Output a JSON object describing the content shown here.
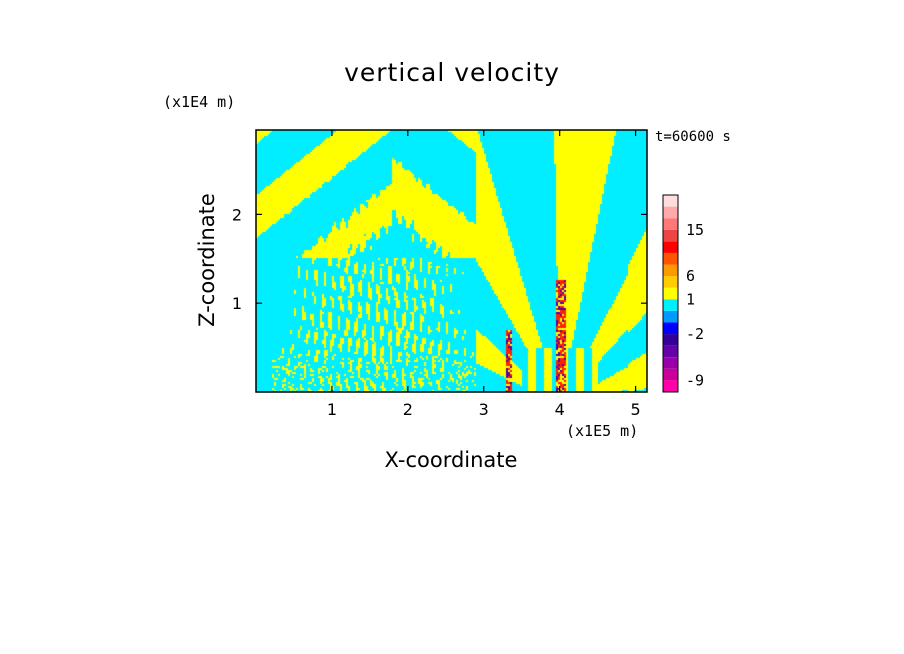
{
  "chart_data": {
    "type": "heatmap",
    "title": "vertical velocity",
    "xlabel": "X-coordinate",
    "ylabel": "Z-coordinate",
    "x_unit": "(x1E5 m)",
    "z_unit": "(x1E4 m)",
    "time_label": "t=60600 s",
    "xlim": [
      0,
      5.15
    ],
    "zlim": [
      0,
      2.95
    ],
    "x_ticks": [
      1,
      2,
      3,
      4,
      5
    ],
    "z_ticks": [
      1,
      2
    ],
    "colorbar": {
      "colors": [
        "#ff00aa",
        "#cc0099",
        "#9900aa",
        "#6600aa",
        "#330099",
        "#0000ff",
        "#0099ff",
        "#00eeff",
        "#ffff00",
        "#ffcc00",
        "#ff9900",
        "#ff5500",
        "#ff0000",
        "#ee4444",
        "#ff7777",
        "#ffaaaa",
        "#ffdddd"
      ],
      "tick_labels": [
        "-9",
        "-2",
        "1",
        "6",
        "15"
      ],
      "tick_levels": [
        1,
        5,
        8,
        10,
        14
      ]
    },
    "field_colors": {
      "positive": "#ffff00",
      "negative": "#00eeff",
      "strong_positive": "#ff2200",
      "strong_negative": "#5500aa"
    }
  }
}
